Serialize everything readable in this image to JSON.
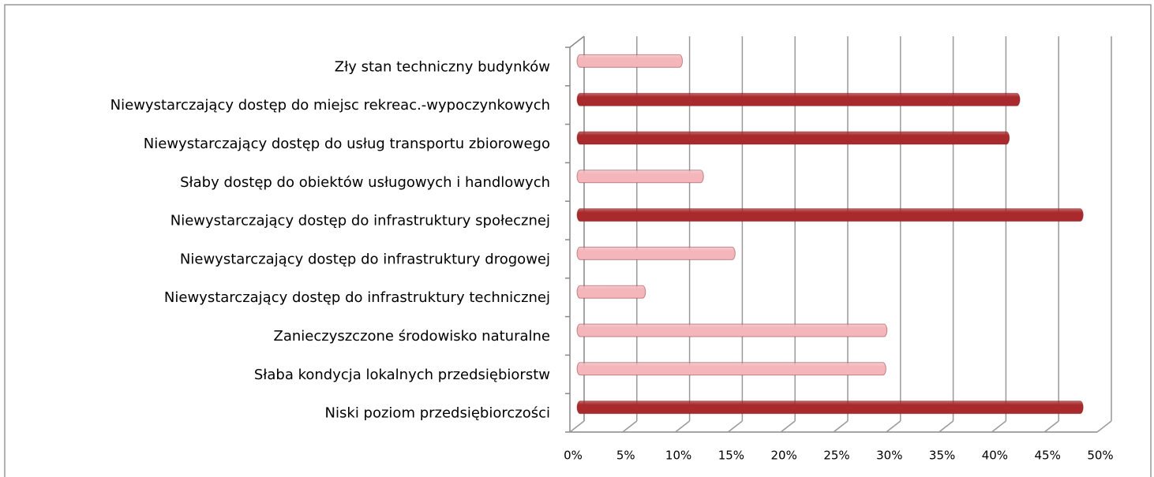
{
  "chart_data": {
    "type": "bar",
    "orientation": "horizontal",
    "categories": [
      "Zły stan techniczny budynków",
      "Niewystarczający dostęp do miejsc rekreac.-wypoczynkowych",
      "Niewystarczający dostęp do usług transportu zbiorowego",
      "Słaby dostęp do obiektów usługowych i handlowych",
      "Niewystarczający dostęp do infrastruktury społecznej",
      "Niewystarczający dostęp do infrastruktury drogowej",
      "Niewystarczający dostęp do infrastruktury technicznej",
      "Zanieczyszczone środowisko naturalne",
      "Słaba kondycja lokalnych przedsiębiorstw",
      "Niski poziom przedsiębiorczości"
    ],
    "values": [
      10,
      42,
      41,
      12,
      48,
      15,
      6.5,
      29.4,
      29.3,
      48
    ],
    "colors": [
      "#f4b6ba",
      "#a82a2c",
      "#a82a2c",
      "#f4b6ba",
      "#a82a2c",
      "#f4b6ba",
      "#f4b6ba",
      "#f4b6ba",
      "#f4b6ba",
      "#a82a2c"
    ],
    "xlim": [
      0,
      50
    ],
    "xticks": [
      {
        "value": 0,
        "label": "0%"
      },
      {
        "value": 5,
        "label": "5%"
      },
      {
        "value": 10,
        "label": "10%"
      },
      {
        "value": 15,
        "label": "15%"
      },
      {
        "value": 20,
        "label": "20%"
      },
      {
        "value": 25,
        "label": "25%"
      },
      {
        "value": 30,
        "label": "30%"
      },
      {
        "value": 35,
        "label": "35%"
      },
      {
        "value": 40,
        "label": "40%"
      },
      {
        "value": 45,
        "label": "45%"
      },
      {
        "value": 50,
        "label": "50%"
      }
    ],
    "grid": true
  }
}
